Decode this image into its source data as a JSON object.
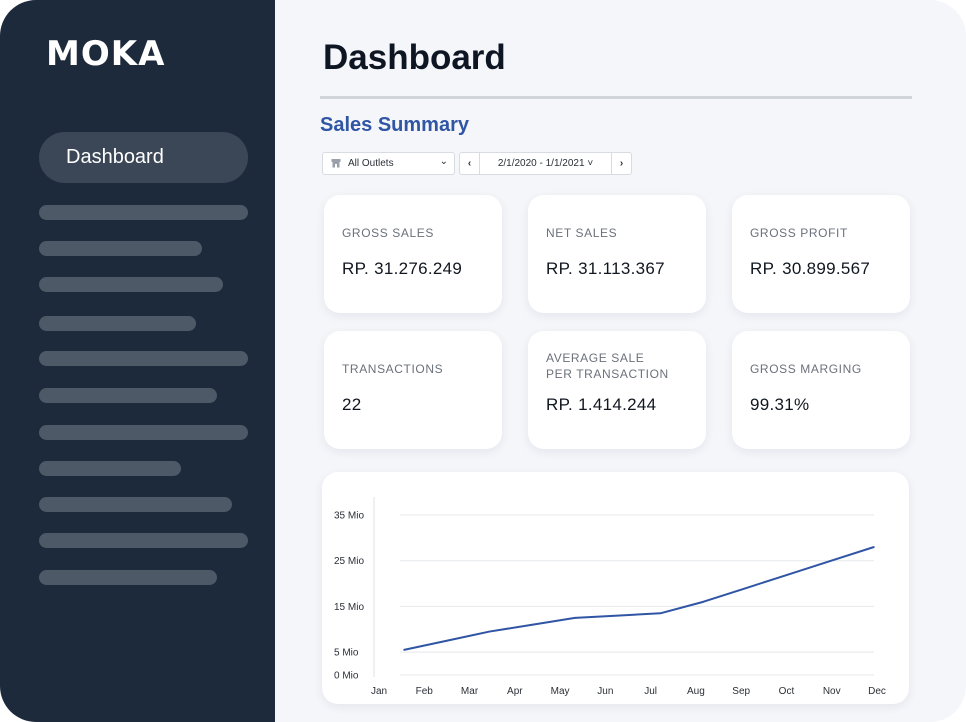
{
  "app": {
    "logo": "MOKA"
  },
  "sidebar": {
    "active_item": "Dashboard",
    "placeholder_bars": 11
  },
  "header": {
    "title": "Dashboard"
  },
  "sales_summary": {
    "title": "Sales Summary",
    "outlet_select": {
      "value": "All Outlets",
      "icon": "store-icon"
    },
    "date_range": {
      "value": "2/1/2020 - 1/1/2021",
      "prev_icon": "chevron-left-icon",
      "next_icon": "chevron-right-icon"
    }
  },
  "metrics": [
    {
      "label": "GROSS SALES",
      "value": "RP. 31.276.249"
    },
    {
      "label": "NET SALES",
      "value": "RP. 31.113.367"
    },
    {
      "label": "GROSS PROFIT",
      "value": "RP. 30.899.567"
    },
    {
      "label": "TRANSACTIONS",
      "value": "22"
    },
    {
      "label": "AVERAGE SALE\nPER TRANSACTION",
      "value": "RP. 1.414.244"
    },
    {
      "label": "GROSS MARGING",
      "value": "99.31%"
    }
  ],
  "colors": {
    "sidebar_bg": "#1d2a3b",
    "accent": "#2f55a4",
    "line": "#2f55a4"
  },
  "chart_data": {
    "type": "line",
    "title": "",
    "xlabel": "",
    "ylabel": "",
    "categories": [
      "Jan",
      "Feb",
      "Mar",
      "Apr",
      "May",
      "Jun",
      "Jul",
      "Aug",
      "Sep",
      "Oct",
      "Nov",
      "Dec"
    ],
    "y_tick_labels": [
      "0 Mio",
      "5 Mio",
      "15 Mio",
      "25 Mio",
      "35 Mio"
    ],
    "y_tick_values": [
      0,
      5,
      15,
      25,
      35
    ],
    "ylim": [
      0,
      35
    ],
    "grid": true,
    "series": [
      {
        "values": [
          5.5,
          7.5,
          9.5,
          11,
          12.5,
          13,
          13.5,
          16,
          19,
          22,
          25,
          28
        ]
      }
    ]
  }
}
